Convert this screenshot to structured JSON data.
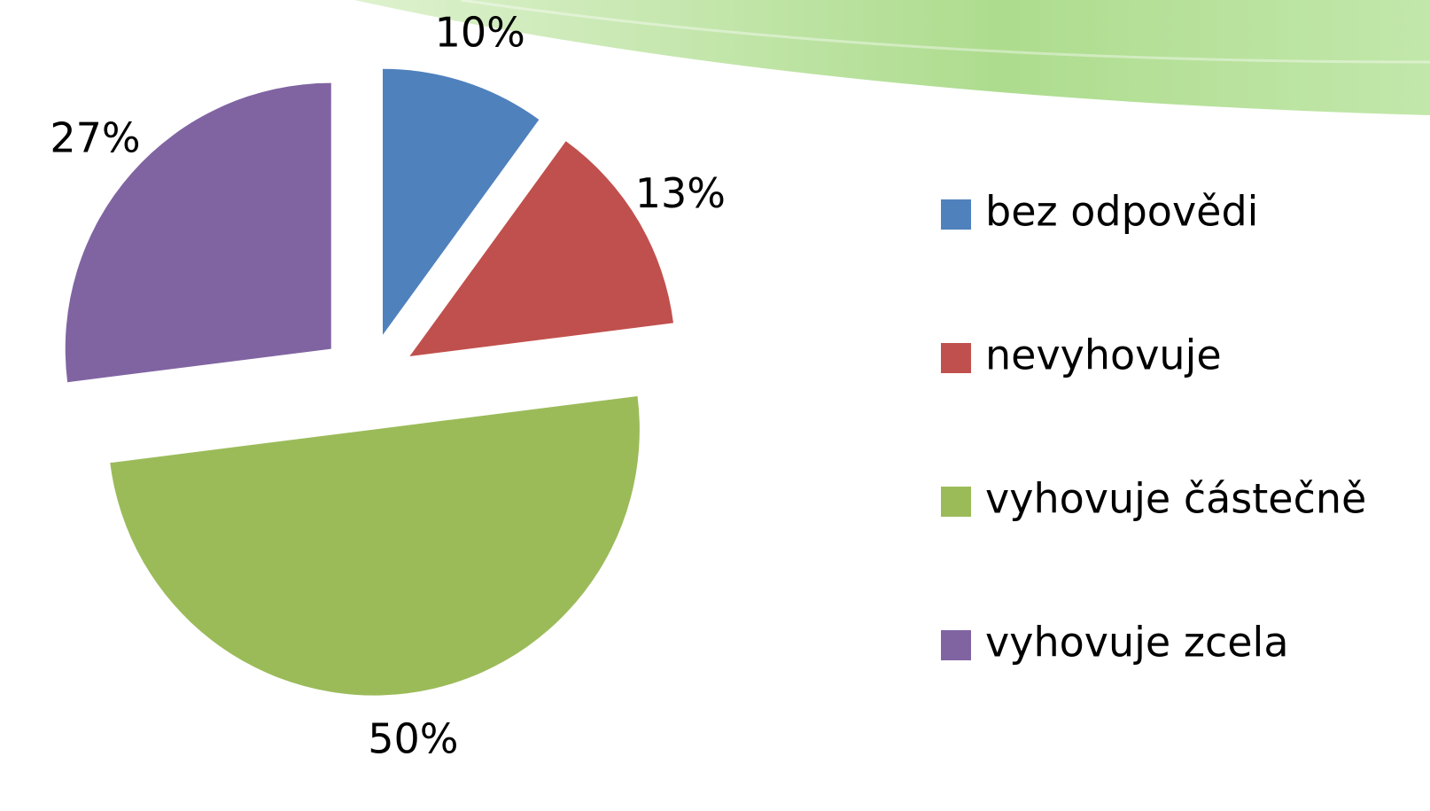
{
  "chart_data": {
    "type": "pie",
    "categories": [
      "bez odpovědi",
      "nevyhovuje",
      "vyhovuje částečně",
      "vyhovuje zcela"
    ],
    "values": [
      10,
      13,
      50,
      27
    ],
    "value_labels": [
      "10%",
      "13%",
      "50%",
      "27%"
    ],
    "colors": [
      "#4f81bd",
      "#c0504d",
      "#9bbb59",
      "#8064a2"
    ],
    "legend": "right"
  }
}
